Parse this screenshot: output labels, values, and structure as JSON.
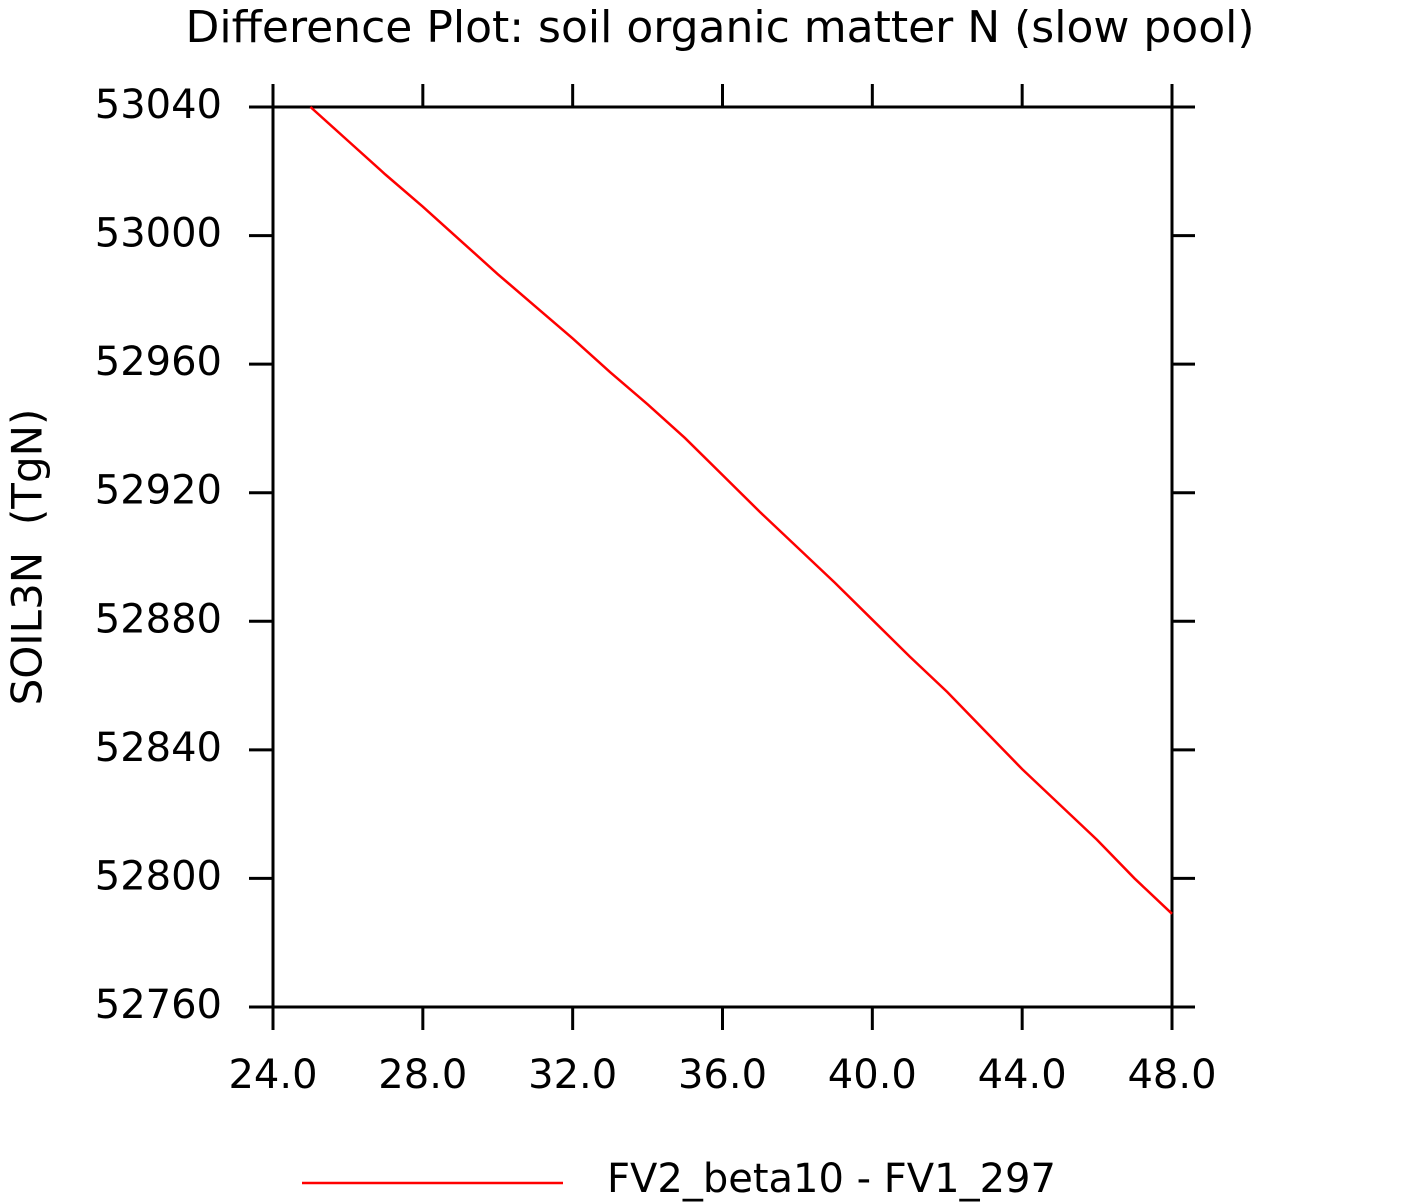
{
  "chart_data": {
    "type": "line",
    "title": "Difference Plot: soil organic matter N (slow pool)",
    "y_label": "SOIL3N  (TgN)",
    "x": [
      25,
      26,
      27,
      28,
      29,
      30,
      31,
      32,
      33,
      34,
      35,
      36,
      37,
      38,
      39,
      40,
      41,
      42,
      43,
      44,
      45,
      46,
      47,
      48
    ],
    "series": [
      {
        "name": "FV2_beta10 - FV1_297",
        "color": "#ff0000",
        "values": [
          53040,
          53029.5,
          53019,
          53009,
          52998.5,
          52988,
          52978,
          52968,
          52957.5,
          52947.5,
          52937,
          52925.5,
          52914,
          52903,
          52892,
          52880.5,
          52869,
          52858,
          52846,
          52834,
          52823,
          52812,
          52800,
          52789
        ]
      }
    ],
    "xlim": [
      24,
      48
    ],
    "xticks": [
      {
        "value": 24,
        "label": "24.0"
      },
      {
        "value": 28,
        "label": "28.0"
      },
      {
        "value": 32,
        "label": "32.0"
      },
      {
        "value": 36,
        "label": "36.0"
      },
      {
        "value": 40,
        "label": "40.0"
      },
      {
        "value": 44,
        "label": "44.0"
      },
      {
        "value": 48,
        "label": "48.0"
      }
    ],
    "ylim": [
      52760,
      53040
    ],
    "yticks": [
      52760,
      52800,
      52840,
      52880,
      52920,
      52960,
      53000,
      53040
    ]
  }
}
